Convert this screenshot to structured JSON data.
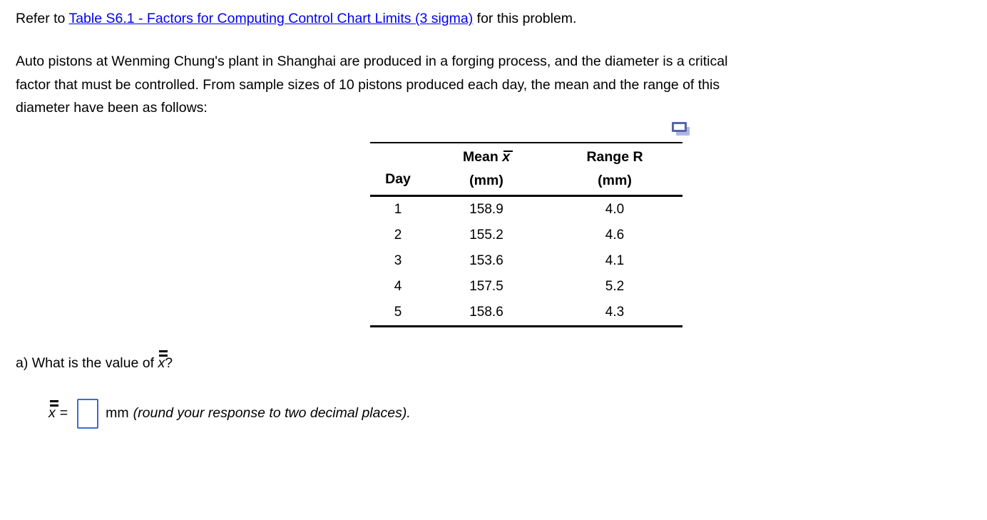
{
  "colors": {
    "link": "#0000ee",
    "text": "#000000",
    "input_border": "#3e6bd5",
    "popup_icon_front": "#5565ab",
    "popup_icon_back": "#aeb8dd"
  },
  "header": {
    "prefix": "Refer to ",
    "link_text": "Table S6.1 - Factors for Computing Control Chart Limits (3 sigma)",
    "suffix": " for this problem."
  },
  "problem": {
    "lines": [
      "Auto pistons at Wenming Chung's plant in Shanghai are produced in a forging process, and the diameter is a critical",
      "factor that must be controlled. From sample sizes of 10 pistons produced each day, the mean and the range of this",
      "diameter have been as follows:"
    ]
  },
  "table": {
    "popup_icon": "popup-table-icon",
    "col_day": "Day",
    "col_mean_prefix": "Mean ",
    "mean_symbol": "x",
    "col_mean_unit": "(mm)",
    "col_range": "Range R",
    "col_range_unit": "(mm)",
    "rows": [
      {
        "day": "1",
        "mean": "158.9",
        "range": "4.0"
      },
      {
        "day": "2",
        "mean": "155.2",
        "range": "4.6"
      },
      {
        "day": "3",
        "mean": "153.6",
        "range": "4.1"
      },
      {
        "day": "4",
        "mean": "157.5",
        "range": "5.2"
      },
      {
        "day": "5",
        "mean": "158.6",
        "range": "4.3"
      }
    ]
  },
  "question_a": {
    "prefix": "a) What is the value of ",
    "symbol": "x",
    "suffix": "?",
    "equals": "=",
    "input_value": "",
    "unit_label": "mm",
    "instruction": "(round your response to two decimal places)."
  }
}
